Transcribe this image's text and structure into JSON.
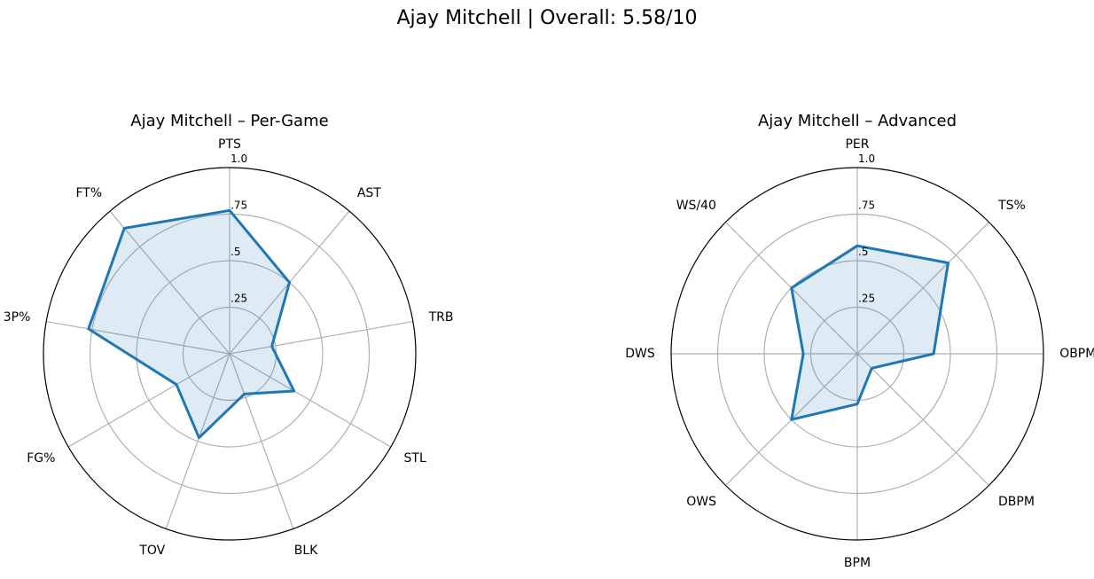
{
  "figure": {
    "title": "Ajay Mitchell | Overall: 5.58/10"
  },
  "chart_data": [
    {
      "type": "radar",
      "title": "Ajay Mitchell – Per-Game",
      "categories": [
        "PTS",
        "AST",
        "TRB",
        "STL",
        "BLK",
        "TOV",
        "FG%",
        "3P%",
        "FT%"
      ],
      "values": [
        0.77,
        0.5,
        0.23,
        0.4,
        0.23,
        0.48,
        0.33,
        0.77,
        0.88
      ],
      "rlim": [
        0,
        1
      ],
      "rticks": [
        0.25,
        0.5,
        0.75,
        1.0
      ],
      "rtick_labels": [
        ".25",
        ".5",
        ".75",
        "1.0"
      ],
      "grid": true,
      "color": "#1f77b4",
      "fill_color": "#1f77b4"
    },
    {
      "type": "radar",
      "title": "Ajay Mitchell – Advanced",
      "categories": [
        "PER",
        "TS%",
        "OBPM",
        "DBPM",
        "BPM",
        "OWS",
        "DWS",
        "WS/40"
      ],
      "values": [
        0.58,
        0.69,
        0.41,
        0.11,
        0.27,
        0.5,
        0.29,
        0.5
      ],
      "rlim": [
        0,
        1
      ],
      "rticks": [
        0.25,
        0.5,
        0.75,
        1.0
      ],
      "rtick_labels": [
        ".25",
        ".5",
        ".75",
        "1.0"
      ],
      "grid": true,
      "color": "#1f77b4",
      "fill_color": "#1f77b4"
    }
  ]
}
